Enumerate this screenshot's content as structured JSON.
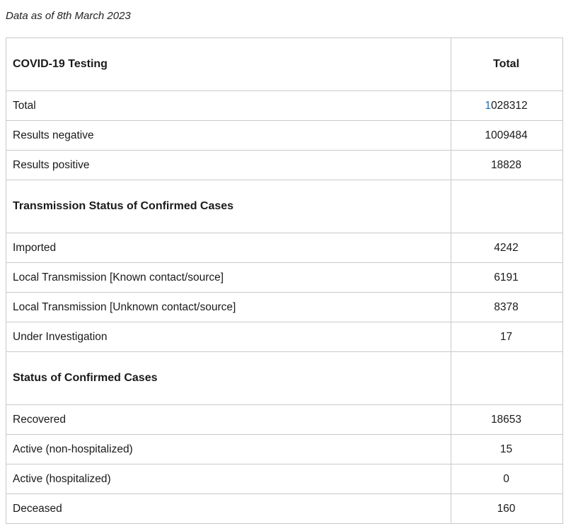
{
  "as_of": "Data as of 8th March 2023",
  "table": {
    "header": {
      "label": "COVID-19 Testing",
      "value": "Total"
    },
    "testing": [
      {
        "label": "Total",
        "value_first": "1",
        "value_rest": "028312"
      },
      {
        "label": "Results negative",
        "value": "1009484"
      },
      {
        "label": "Results positive",
        "value": "18828"
      }
    ],
    "transmission": {
      "title": "Transmission Status of Confirmed Cases",
      "rows": [
        {
          "label": "Imported",
          "value": "4242"
        },
        {
          "label": "Local Transmission [Known contact/source]",
          "value": "6191"
        },
        {
          "label": "Local Transmission [Unknown contact/source]",
          "value": "8378"
        },
        {
          "label": "Under Investigation",
          "value": "17"
        }
      ]
    },
    "status": {
      "title": "Status of Confirmed Cases",
      "rows": [
        {
          "label": "Recovered",
          "value": "18653"
        },
        {
          "label": "Active (non-hospitalized)",
          "value": "15"
        },
        {
          "label": "Active (hospitalized)",
          "value": "0"
        },
        {
          "label": "Deceased",
          "value": "160"
        }
      ]
    }
  },
  "colors": {
    "border": "#c9c9c9",
    "link_digit": "#1f6fb5",
    "text": "#1a1a1a"
  }
}
